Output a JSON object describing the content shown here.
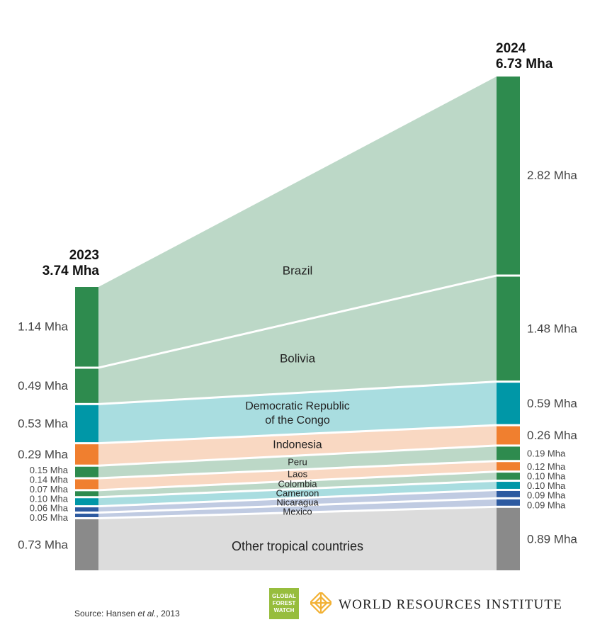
{
  "chart_data": {
    "type": "sankey",
    "title": "",
    "unit": "Mha",
    "left": {
      "year": "2023",
      "total": "3.74 Mha"
    },
    "right": {
      "year": "2024",
      "total": "6.73 Mha"
    },
    "flows": [
      {
        "name": "Brazil",
        "v2023": 1.14,
        "v2024": 2.82,
        "label2023": "1.14 Mha",
        "label2024": "2.82 Mha"
      },
      {
        "name": "Bolivia",
        "v2023": 0.49,
        "v2024": 1.48,
        "label2023": "0.49 Mha",
        "label2024": "1.48 Mha"
      },
      {
        "name": "Democratic Republic\nof the Congo",
        "v2023": 0.53,
        "v2024": 0.59,
        "label2023": "0.53 Mha",
        "label2024": "0.59 Mha"
      },
      {
        "name": "Indonesia",
        "v2023": 0.29,
        "v2024": 0.26,
        "label2023": "0.29 Mha",
        "label2024": "0.26 Mha"
      },
      {
        "name": "Peru",
        "v2023": 0.15,
        "v2024": 0.19,
        "label2023": "0.15 Mha",
        "label2024": "0.19 Mha"
      },
      {
        "name": "Laos",
        "v2023": 0.14,
        "v2024": 0.12,
        "label2023": "0.14 Mha",
        "label2024": "0.12 Mha"
      },
      {
        "name": "Colombia",
        "v2023": 0.07,
        "v2024": 0.1,
        "label2023": "0.07 Mha",
        "label2024": "0.10 Mha"
      },
      {
        "name": "Cameroon",
        "v2023": 0.1,
        "v2024": 0.1,
        "label2023": "0.10 Mha",
        "label2024": "0.10 Mha"
      },
      {
        "name": "Nicaragua",
        "v2023": 0.06,
        "v2024": 0.09,
        "label2023": "0.06 Mha",
        "label2024": "0.09 Mha"
      },
      {
        "name": "Mexico",
        "v2023": 0.05,
        "v2024": 0.09,
        "label2023": "0.05 Mha",
        "label2024": "0.09 Mha"
      },
      {
        "name": "Other tropical countries",
        "v2023": 0.73,
        "v2024": 0.89,
        "label2023": "0.73 Mha",
        "label2024": "0.89 Mha"
      }
    ],
    "colors": {
      "green_bar": "#2e8b4e",
      "green_band": "#bcd8c7",
      "teal_bar": "#0097a7",
      "teal_band": "#a9dde0",
      "orange_bar": "#f07f2f",
      "orange_band": "#f9d8c2",
      "blue_bar": "#2d5aa0",
      "blue_band": "#c0cbe2",
      "gray_bar": "#8a8a8a",
      "gray_band": "#dcdcdc"
    },
    "source": {
      "prefix": "Source: Hansen ",
      "italic": "et al.",
      "suffix": ", 2013"
    }
  },
  "logos": {
    "gfw": [
      "GLOBAL",
      "FOREST",
      "WATCH"
    ],
    "wri": "WORLD RESOURCES INSTITUTE"
  }
}
